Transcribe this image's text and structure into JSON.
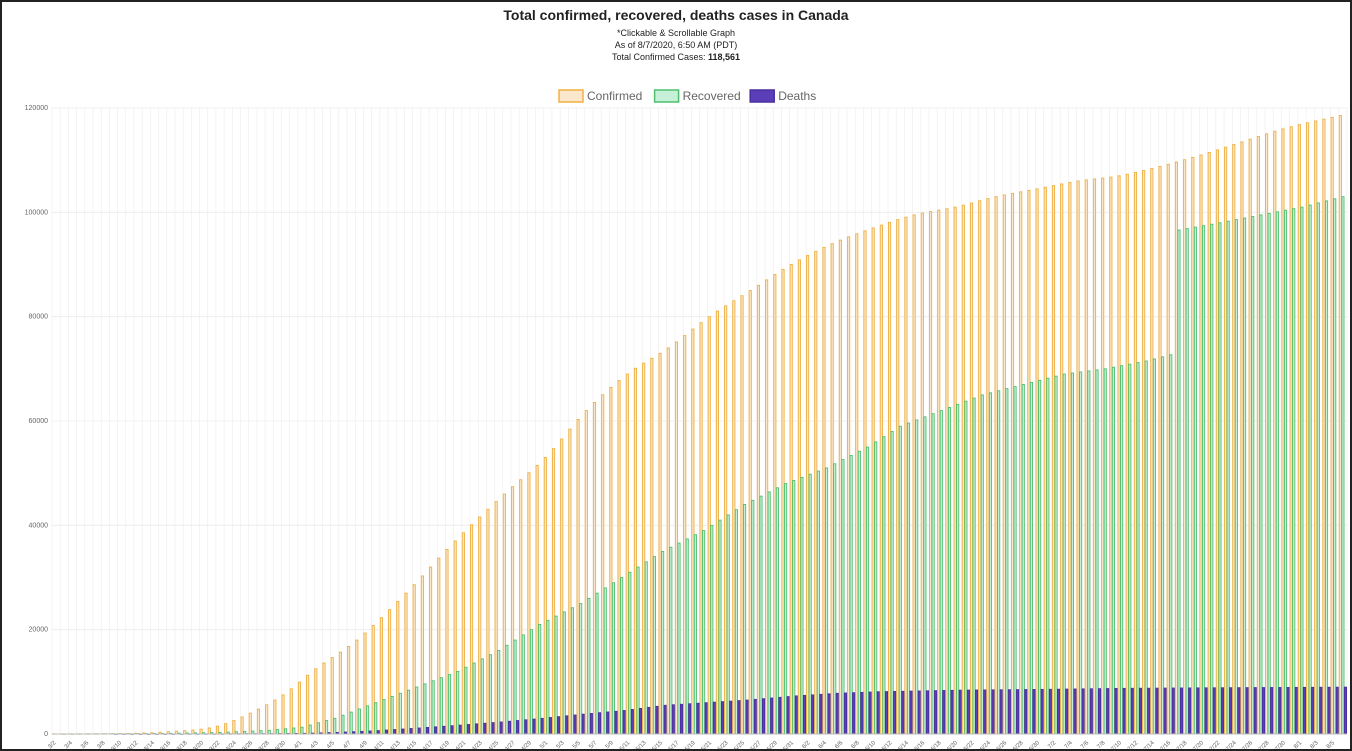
{
  "title": "Total confirmed, recovered, deaths cases in Canada",
  "subtitle1": "*Clickable & Scrollable Graph",
  "subtitle2": "As of 8/7/2020, 6:50 AM (PDT)",
  "subtitle3_prefix": "Total Confirmed Cases: ",
  "subtitle3_value": "118,561",
  "colors": {
    "confirmed_fill": "#fbe8cc",
    "confirmed_border": "#f0b040",
    "recovered_fill": "#c7f0d8",
    "recovered_border": "#4fbf6f",
    "deaths_fill": "#5a3fb8",
    "deaths_border": "#4a2fa0",
    "grid": "#ececec"
  },
  "chart_data": {
    "type": "bar",
    "stacked": false,
    "grid": true,
    "legend_position": "top",
    "ylim": [
      0,
      120000
    ],
    "y_ticks": [
      "0",
      "20000",
      "40000",
      "60000",
      "80000",
      "100000",
      "120000"
    ],
    "x_start": "3/2",
    "x_end": "8/6",
    "x_tick_labels": [
      "3/2",
      "3/4",
      "3/6",
      "3/8",
      "3/10",
      "3/12",
      "3/14",
      "3/16",
      "3/18",
      "3/20",
      "3/22",
      "3/24",
      "3/26",
      "3/28",
      "3/30",
      "4/1",
      "4/3",
      "4/5",
      "4/7",
      "4/9",
      "4/11",
      "4/13",
      "4/15",
      "4/17",
      "4/19",
      "4/21",
      "4/23",
      "4/25",
      "4/27",
      "4/29",
      "5/1",
      "5/3",
      "5/5",
      "5/7",
      "5/9",
      "5/11",
      "5/13",
      "5/15",
      "5/17",
      "5/19",
      "5/21",
      "5/23",
      "5/25",
      "5/27",
      "5/29",
      "5/31",
      "6/2",
      "6/4",
      "6/6",
      "6/8",
      "6/10",
      "6/12",
      "6/14",
      "6/16",
      "6/18",
      "6/20",
      "6/22",
      "6/24",
      "6/26",
      "6/28",
      "6/30",
      "7/2",
      "7/4",
      "7/6",
      "7/8",
      "7/10",
      "7/12",
      "7/14",
      "7/16",
      "7/18",
      "7/20",
      "7/22",
      "7/24",
      "7/26",
      "7/28",
      "7/30",
      "8/1",
      "8/3",
      "8/5"
    ],
    "series": [
      {
        "name": "Confirmed",
        "key": "confirmed",
        "interpolate": "monotone",
        "anchors": [
          [
            "3/2",
            27
          ],
          [
            "3/10",
            79
          ],
          [
            "3/16",
            439
          ],
          [
            "3/22",
            1500
          ],
          [
            "3/26",
            4000
          ],
          [
            "3/30",
            7500
          ],
          [
            "4/3",
            12500
          ],
          [
            "4/8",
            18000
          ],
          [
            "4/14",
            27000
          ],
          [
            "4/20",
            37000
          ],
          [
            "4/26",
            46000
          ],
          [
            "5/1",
            53000
          ],
          [
            "5/6",
            62000
          ],
          [
            "5/11",
            69000
          ],
          [
            "5/16",
            74000
          ],
          [
            "5/21",
            80000
          ],
          [
            "5/26",
            85000
          ],
          [
            "5/31",
            90000
          ],
          [
            "6/5",
            94000
          ],
          [
            "6/10",
            97000
          ],
          [
            "6/15",
            99500
          ],
          [
            "6/20",
            101000
          ],
          [
            "6/25",
            103000
          ],
          [
            "6/30",
            104500
          ],
          [
            "7/5",
            106000
          ],
          [
            "7/10",
            107000
          ],
          [
            "7/15",
            108800
          ],
          [
            "7/20",
            111000
          ],
          [
            "7/25",
            113500
          ],
          [
            "7/30",
            116000
          ],
          [
            "8/6",
            118561
          ]
        ]
      },
      {
        "name": "Recovered",
        "key": "recovered",
        "interpolate": "linear",
        "anchors": [
          [
            "3/2",
            0
          ],
          [
            "3/15",
            100
          ],
          [
            "3/22",
            300
          ],
          [
            "3/28",
            700
          ],
          [
            "4/1",
            1300
          ],
          [
            "4/5",
            3000
          ],
          [
            "4/10",
            6000
          ],
          [
            "4/15",
            9000
          ],
          [
            "4/20",
            12000
          ],
          [
            "4/25",
            16000
          ],
          [
            "4/30",
            21000
          ],
          [
            "5/5",
            25000
          ],
          [
            "5/10",
            30000
          ],
          [
            "5/15",
            35000
          ],
          [
            "5/20",
            39000
          ],
          [
            "5/25",
            44000
          ],
          [
            "5/30",
            48000
          ],
          [
            "6/4",
            51000
          ],
          [
            "6/9",
            55000
          ],
          [
            "6/13",
            59000
          ],
          [
            "6/18",
            62000
          ],
          [
            "6/23",
            65000
          ],
          [
            "6/28",
            67000
          ],
          [
            "7/3",
            69000
          ],
          [
            "7/8",
            70000
          ],
          [
            "7/13",
            71500
          ],
          [
            "7/16",
            72700
          ],
          [
            "7/17",
            96600
          ],
          [
            "7/22",
            98000
          ],
          [
            "7/27",
            99500
          ],
          [
            "8/1",
            101000
          ],
          [
            "8/6",
            103000
          ]
        ]
      },
      {
        "name": "Deaths",
        "key": "deaths",
        "interpolate": "linear",
        "anchors": [
          [
            "3/2",
            0
          ],
          [
            "3/15",
            1
          ],
          [
            "3/22",
            20
          ],
          [
            "3/28",
            60
          ],
          [
            "4/1",
            120
          ],
          [
            "4/5",
            300
          ],
          [
            "4/10",
            650
          ],
          [
            "4/15",
            1150
          ],
          [
            "4/20",
            1700
          ],
          [
            "4/25",
            2300
          ],
          [
            "4/30",
            3000
          ],
          [
            "5/5",
            3800
          ],
          [
            "5/10",
            4500
          ],
          [
            "5/15",
            5500
          ],
          [
            "5/20",
            6000
          ],
          [
            "5/25",
            6500
          ],
          [
            "5/31",
            7300
          ],
          [
            "6/5",
            7800
          ],
          [
            "6/10",
            8100
          ],
          [
            "6/15",
            8250
          ],
          [
            "6/20",
            8400
          ],
          [
            "6/30",
            8550
          ],
          [
            "7/10",
            8750
          ],
          [
            "7/20",
            8850
          ],
          [
            "7/31",
            8930
          ],
          [
            "8/6",
            8980
          ]
        ]
      }
    ]
  }
}
